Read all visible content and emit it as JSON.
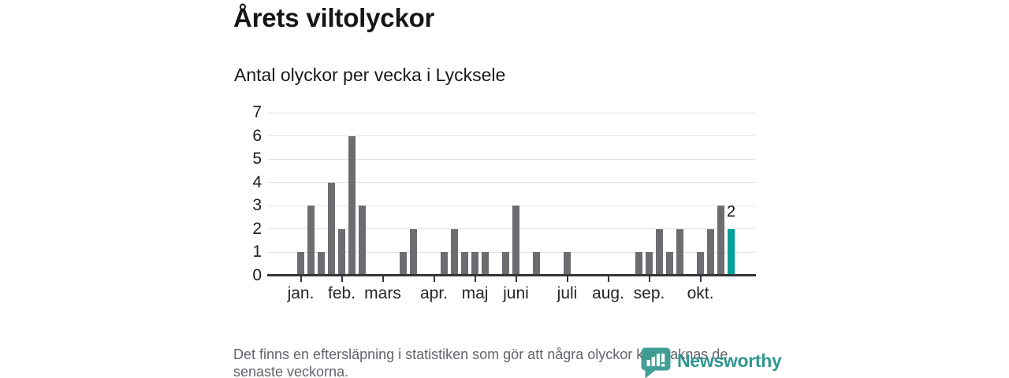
{
  "title": "Årets viltolyckor",
  "subtitle": "Antal olyckor per vecka i Lycksele",
  "footnote": {
    "lines": [
      "Det finns en eftersläpning i statistiken som gör att några olyckor kan saknas de",
      "senaste veckorna."
    ]
  },
  "logo": {
    "wordmark": "Newsworthy",
    "color": "#2f968f",
    "icon": "newsworthy-map-pin-barchart-icon"
  },
  "chart_data": {
    "type": "bar",
    "title": "Årets viltolyckor",
    "subtitle": "Antal olyckor per vecka i Lycksele",
    "x_unit": "week",
    "values": [
      1,
      3,
      1,
      4,
      2,
      6,
      3,
      0,
      0,
      0,
      1,
      2,
      0,
      0,
      1,
      2,
      1,
      1,
      1,
      0,
      1,
      3,
      0,
      1,
      0,
      0,
      1,
      0,
      0,
      0,
      0,
      0,
      0,
      1,
      1,
      2,
      1,
      2,
      0,
      1,
      2,
      3,
      2
    ],
    "month_ticks": [
      {
        "label": "jan.",
        "week": 0
      },
      {
        "label": "feb.",
        "week": 4
      },
      {
        "label": "mars",
        "week": 8
      },
      {
        "label": "apr.",
        "week": 13
      },
      {
        "label": "maj",
        "week": 17
      },
      {
        "label": "juni",
        "week": 21
      },
      {
        "label": "juli",
        "week": 26
      },
      {
        "label": "aug.",
        "week": 30
      },
      {
        "label": "sep.",
        "week": 34
      },
      {
        "label": "okt.",
        "week": 39
      }
    ],
    "yticks": [
      0,
      1,
      2,
      3,
      4,
      5,
      6,
      7
    ],
    "ylim": [
      0,
      7
    ],
    "grid": true,
    "highlight": {
      "index": 42,
      "label": "2"
    },
    "colors": {
      "bar": "#6c6c71",
      "highlight": "#00a09a",
      "gridline": "#e2e2e2",
      "axis": "#36363a"
    }
  }
}
